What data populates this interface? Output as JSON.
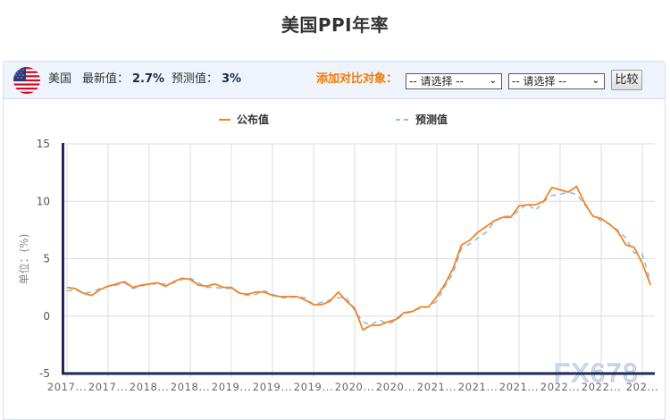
{
  "page": {
    "title": "美国PPI年率"
  },
  "header": {
    "country": "美国",
    "latest_label": "最新值：",
    "latest_value": "2.7%",
    "forecast_label": "预测值：",
    "forecast_value": "3%",
    "compare_label": "添加对比对象：",
    "select1": "-- 请选择 --",
    "select2": "-- 请选择 --",
    "compare_button": "比较",
    "flag_icon": "us-flag-icon"
  },
  "colors": {
    "published": "#f5821f",
    "forecast": "#8fbde6",
    "axis": "#1e2a55",
    "grid": "#dcdcdc",
    "compare_label": "#f27a00"
  },
  "watermark": "FX678",
  "chart_data": {
    "type": "line",
    "title": "美国PPI年率",
    "ylabel": "单位：(%)",
    "xlabel": "",
    "ylim": [
      -5,
      15
    ],
    "yticks": [
      "15",
      "10",
      "5",
      "0",
      "-5"
    ],
    "ytick_values": [
      15,
      10,
      5,
      0,
      -5
    ],
    "xtick_labels": [
      "2017...",
      "2017...",
      "2018...",
      "2018...",
      "2019...",
      "2019...",
      "2019...",
      "2020...",
      "2020...",
      "2021...",
      "2021...",
      "2021...",
      "2022...",
      "2022...",
      "202..."
    ],
    "xtick_every": 5,
    "grid": true,
    "legend_position": "top",
    "series": [
      {
        "name": "公布值",
        "style": "solid",
        "values": [
          2.5,
          2.4,
          2.0,
          1.8,
          2.3,
          2.6,
          2.8,
          3.0,
          2.5,
          2.7,
          2.8,
          2.9,
          2.6,
          3.0,
          3.3,
          3.2,
          2.7,
          2.6,
          2.8,
          2.5,
          2.5,
          2.0,
          1.9,
          2.1,
          2.1,
          1.8,
          1.7,
          1.7,
          1.7,
          1.4,
          1.0,
          1.0,
          1.3,
          2.1,
          1.3,
          0.7,
          -1.2,
          -0.8,
          -0.8,
          -0.5,
          -0.3,
          0.3,
          0.4,
          0.8,
          0.8,
          1.7,
          2.8,
          4.2,
          6.2,
          6.6,
          7.3,
          7.8,
          8.3,
          8.6,
          8.6,
          9.6,
          9.7,
          9.7,
          10.0,
          11.2,
          11.0,
          10.8,
          11.3,
          9.8,
          8.7,
          8.5,
          8.0,
          7.4,
          6.2,
          6.0,
          4.6,
          2.7
        ]
      },
      {
        "name": "预测值",
        "style": "dashed",
        "values": [
          2.2,
          2.3,
          2.0,
          2.1,
          2.4,
          2.6,
          2.7,
          2.9,
          2.4,
          2.6,
          2.8,
          2.8,
          2.8,
          2.9,
          3.2,
          3.3,
          2.9,
          2.5,
          2.5,
          2.4,
          2.4,
          2.0,
          1.8,
          1.9,
          2.2,
          1.9,
          1.6,
          1.6,
          1.7,
          1.6,
          1.0,
          1.2,
          1.4,
          1.6,
          1.6,
          0.5,
          -0.5,
          -0.8,
          -0.3,
          -0.7,
          -0.4,
          0.2,
          0.4,
          0.7,
          0.8,
          1.3,
          2.6,
          3.8,
          5.9,
          6.3,
          6.8,
          7.3,
          8.2,
          8.7,
          8.7,
          9.2,
          9.8,
          9.2,
          10.0,
          10.5,
          10.6,
          10.8,
          10.6,
          9.7,
          8.7,
          8.3,
          8.0,
          7.5,
          6.8,
          5.5,
          5.4,
          3.0
        ]
      }
    ]
  }
}
